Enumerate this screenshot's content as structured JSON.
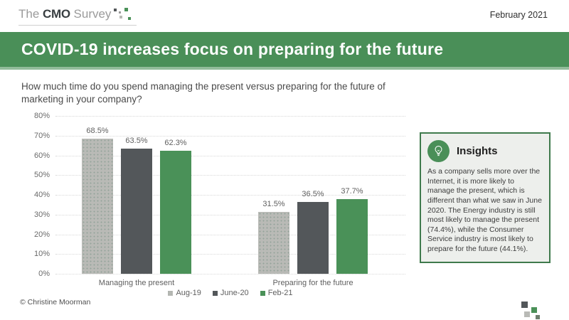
{
  "header": {
    "logo_the": "The ",
    "logo_cmo": "CMO",
    "logo_survey": " Survey",
    "date": "February 2021"
  },
  "banner": {
    "title": "COVID-19 increases focus on preparing for the future"
  },
  "question": {
    "text": "How much time do you spend managing the present versus preparing for the future of marketing in your company?"
  },
  "chart_data": {
    "type": "bar",
    "title": "",
    "categories": [
      "Managing the present",
      "Preparing for the future"
    ],
    "series": [
      {
        "name": "Aug-19",
        "color": "#b9bab6",
        "texture": "dots",
        "values": [
          68.5,
          31.5
        ]
      },
      {
        "name": "June-20",
        "color": "#53575a",
        "texture": "solid",
        "values": [
          63.5,
          36.5
        ]
      },
      {
        "name": "Feb-21",
        "color": "#4a9158",
        "texture": "solid",
        "values": [
          62.3,
          37.7
        ]
      }
    ],
    "xlabel": "",
    "ylabel": "",
    "ylim": [
      0,
      80
    ],
    "yticks": [
      "80%",
      "70%",
      "60%",
      "50%",
      "40%",
      "30%",
      "20%",
      "10%",
      "0%"
    ],
    "grid": "horizontal-dotted",
    "legend_position": "bottom-center",
    "value_label_suffix": "%"
  },
  "insights": {
    "title": "Insights",
    "icon": "lightbulb-icon",
    "body": "As a company sells more over the Internet, it is more likely to manage the present, which is different than what we saw in June 2020. The Energy industry is still most likely to manage the present (74.4%), while the Consumer Service industry is most likely to prepare for the future (44.1%)."
  },
  "footer": {
    "copyright": "© Christine Moorman"
  },
  "colors": {
    "brand_green": "#4a8f58",
    "banner_bg": "#4a8f58",
    "insights_bg": "#edefec",
    "insights_border": "#3f7a4c",
    "bar_light_gray": "#b9bab6",
    "bar_dark_gray": "#53575a",
    "bar_green": "#4a9158",
    "gridline": "#d8d8d8",
    "text_gray": "#5f5f5f"
  }
}
